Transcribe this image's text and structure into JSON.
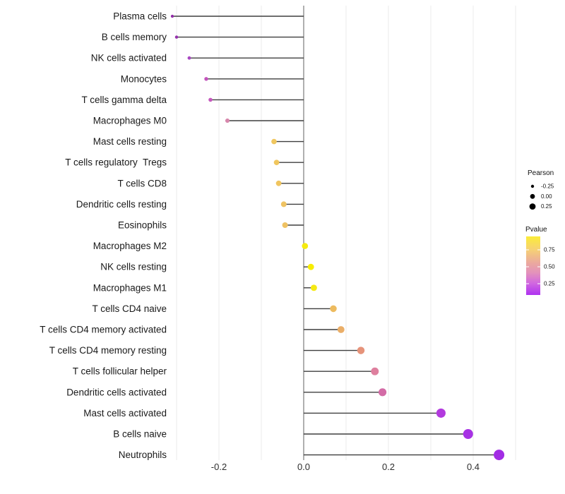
{
  "chart_data": {
    "type": "scatter",
    "variant": "lollipop",
    "title": "",
    "xlabel": "",
    "ylabel": "",
    "categories": [
      "Plasma cells",
      "B cells memory",
      "NK cells activated",
      "Monocytes",
      "T cells gamma delta",
      "Macrophages M0",
      "Mast cells resting",
      "T cells regulatory  Tregs",
      "T cells CD8",
      "Dendritic cells resting",
      "Eosinophils",
      "Macrophages M2",
      "NK cells resting",
      "Macrophages M1",
      "T cells CD4 naive",
      "T cells CD4 memory activated",
      "T cells CD4 memory resting",
      "T cells follicular helper",
      "Dendritic cells activated",
      "Mast cells activated",
      "B cells naive",
      "Neutrophils"
    ],
    "series": [
      {
        "name": "Pearson",
        "values": [
          -0.31,
          -0.3,
          -0.27,
          -0.23,
          -0.22,
          -0.18,
          -0.07,
          -0.064,
          -0.059,
          -0.047,
          -0.044,
          0.003,
          0.017,
          0.024,
          0.07,
          0.088,
          0.135,
          0.168,
          0.186,
          0.324,
          0.388,
          0.461
        ]
      }
    ],
    "point_colors": [
      "#922DA8",
      "#9431AC",
      "#A848C2",
      "#C354BC",
      "#C658BE",
      "#D787AC",
      "#F0C75F",
      "#F0C65E",
      "#F0C55F",
      "#EFC363",
      "#EFC263",
      "#F5EA0F",
      "#F7ED00",
      "#F5E914",
      "#EDBB5F",
      "#EAAE68",
      "#E6937A",
      "#DE7F9E",
      "#D36BA6",
      "#B23ADE",
      "#A732E4",
      "#A22CE4"
    ],
    "xlim": [
      -0.315,
      0.525
    ],
    "x_ticks": [
      -0.2,
      0.0,
      0.2,
      0.4
    ],
    "x_tick_labels": [
      "-0.2",
      "0.0",
      "0.2",
      "0.4"
    ],
    "gridline_step": 0.1,
    "grid": true,
    "legend_position": "right",
    "legend": {
      "pearson": {
        "title": "Pearson",
        "items": [
          {
            "label": "-0.25",
            "r": 2.2
          },
          {
            "label": "0.00",
            "r": 3.4
          },
          {
            "label": "0.25",
            "r": 4.4
          }
        ]
      },
      "pvalue": {
        "title": "Pvalue",
        "tick_labels": [
          "0.75",
          "0.50",
          "0.25"
        ],
        "tick_values": [
          0.75,
          0.5,
          0.25
        ],
        "gradient_stops": [
          {
            "offset": 0,
            "color": "#FBEC38"
          },
          {
            "offset": 0.22,
            "color": "#F6D274"
          },
          {
            "offset": 0.45,
            "color": "#EBA99E"
          },
          {
            "offset": 0.62,
            "color": "#E392BB"
          },
          {
            "offset": 0.8,
            "color": "#D167E0"
          },
          {
            "offset": 1,
            "color": "#AE32F0"
          }
        ]
      }
    },
    "style_colors": {
      "stem": "#3f3f3f",
      "zero_line": "#6e6e6e",
      "gridline": "#e9e9e9",
      "legend_dot": "#000000"
    }
  }
}
